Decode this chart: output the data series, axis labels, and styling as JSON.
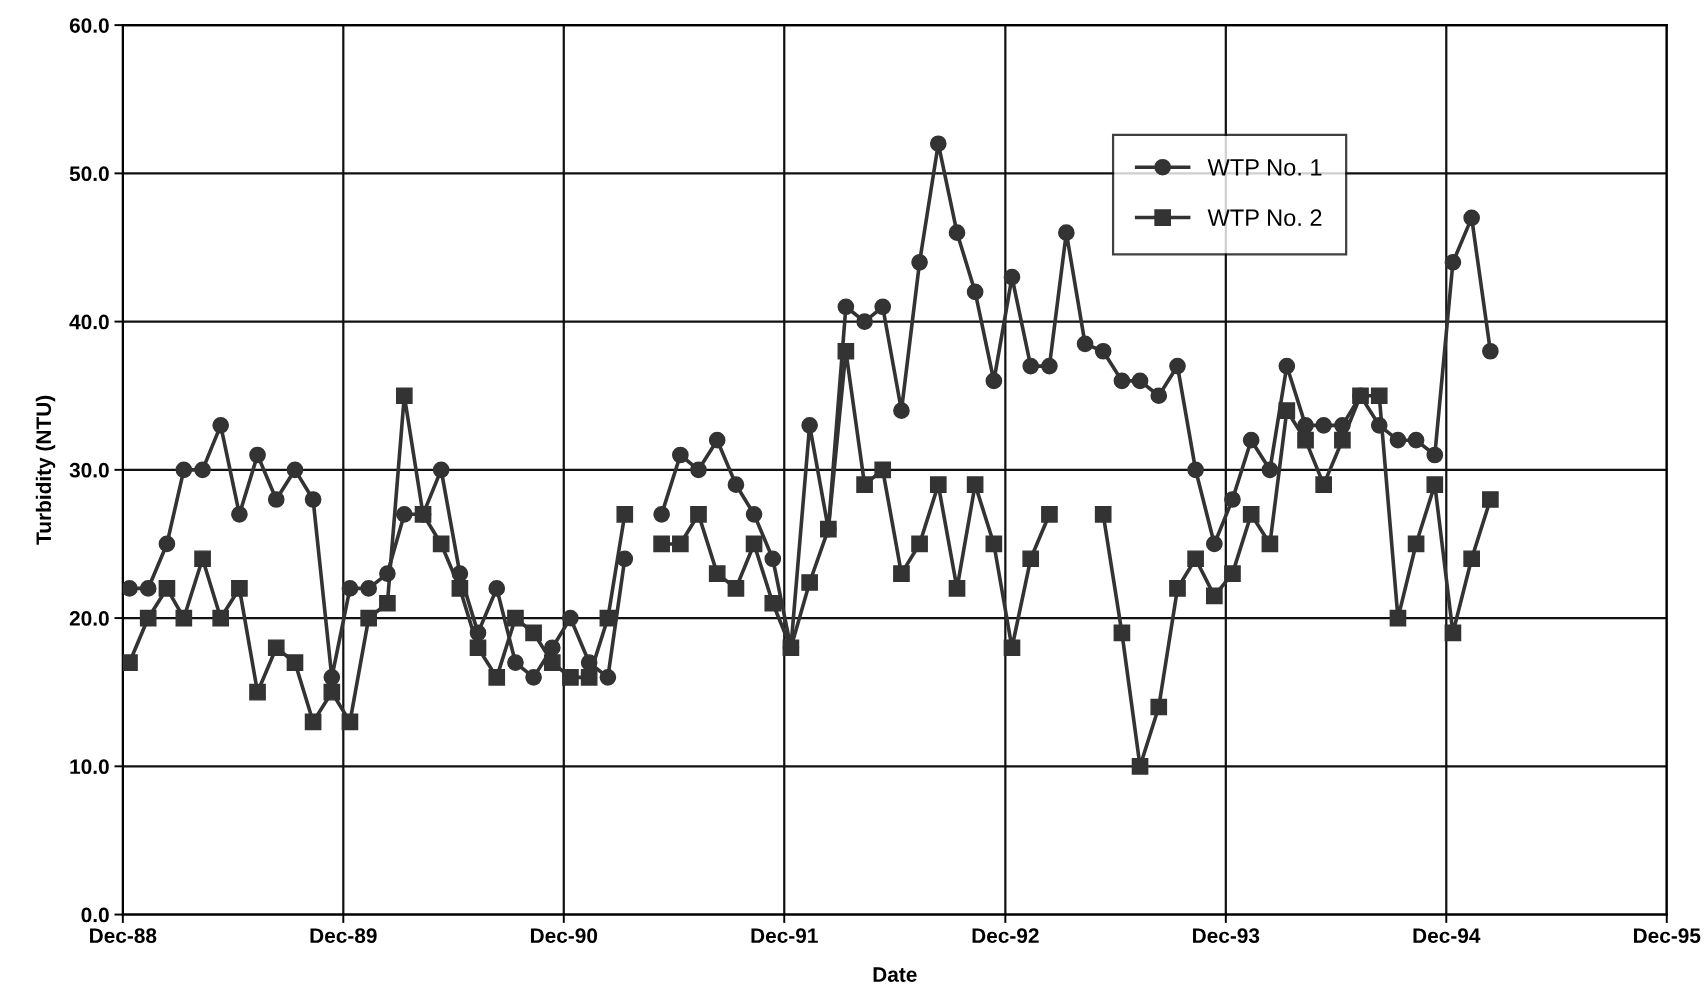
{
  "chart_data": {
    "type": "line",
    "xlabel": "Date",
    "ylabel": "Turbidity (NTU)",
    "x": [
      "1988-12-12",
      "1989-01-12",
      "1989-02-12",
      "1989-03-12",
      "1989-04-12",
      "1989-05-12",
      "1989-06-12",
      "1989-07-12",
      "1989-08-12",
      "1989-09-12",
      "1989-10-12",
      "1989-11-12",
      "1989-12-12",
      "1990-01-12",
      "1990-02-12",
      "1990-03-12",
      "1990-04-12",
      "1990-05-12",
      "1990-06-12",
      "1990-07-12",
      "1990-08-12",
      "1990-09-12",
      "1990-10-12",
      "1990-11-12",
      "1990-12-12",
      "1991-01-12",
      "1991-02-12",
      "1991-03-12",
      "1991-04-12",
      "1991-05-12",
      "1991-06-12",
      "1991-07-12",
      "1991-08-12",
      "1991-09-12",
      "1991-10-12",
      "1991-11-12",
      "1991-12-12",
      "1992-01-12",
      "1992-02-12",
      "1992-03-12",
      "1992-04-12",
      "1992-05-12",
      "1992-06-12",
      "1992-07-12",
      "1992-08-12",
      "1992-09-12",
      "1992-10-12",
      "1992-11-12",
      "1992-12-12",
      "1993-01-12",
      "1993-02-12",
      "1993-03-12",
      "1993-04-12",
      "1993-05-12",
      "1993-06-12",
      "1993-07-12",
      "1993-08-12",
      "1993-09-12",
      "1993-10-12",
      "1993-11-12",
      "1993-12-12",
      "1994-01-12",
      "1994-02-12",
      "1994-03-12",
      "1994-04-12",
      "1994-05-12",
      "1994-06-12",
      "1994-07-12",
      "1994-08-12",
      "1994-09-12",
      "1994-10-12",
      "1994-11-12",
      "1994-12-12",
      "1995-01-12",
      "1995-02-12"
    ],
    "series": [
      {
        "name": "WTP No. 1",
        "color": "#333333",
        "marker": "circle",
        "values": [
          22,
          22,
          25,
          30,
          30,
          33,
          27,
          31,
          28,
          30,
          28,
          16,
          22,
          22,
          23,
          27,
          27,
          30,
          23,
          19,
          22,
          17,
          16,
          18,
          20,
          17,
          16,
          24,
          null,
          27,
          31,
          30,
          32,
          29,
          27,
          24,
          18,
          33,
          26,
          41,
          40,
          41,
          34,
          44,
          52,
          46,
          42,
          36,
          43,
          37,
          37,
          46,
          38.5,
          38,
          36,
          36,
          35,
          37,
          30,
          25,
          28,
          32,
          30,
          37,
          33,
          33,
          33,
          35,
          33,
          32,
          32,
          31,
          44,
          47,
          38
        ]
      },
      {
        "name": "WTP No. 2",
        "color": "#333333",
        "marker": "square",
        "values": [
          17,
          20,
          22,
          20,
          24,
          20,
          22,
          15,
          18,
          17,
          13,
          15,
          13,
          20,
          21,
          35,
          27,
          25,
          22,
          18,
          16,
          20,
          19,
          17,
          16,
          16,
          20,
          27,
          null,
          25,
          25,
          27,
          23,
          22,
          25,
          21,
          18,
          22.4,
          26,
          38,
          29,
          30,
          23,
          25,
          29,
          22,
          29,
          25,
          18,
          24,
          27,
          null,
          null,
          27,
          19,
          10,
          14,
          22,
          24,
          21.5,
          23,
          27,
          25,
          34,
          32,
          29,
          32,
          35,
          35,
          20,
          25,
          29,
          19,
          24,
          28
        ]
      }
    ],
    "xlim": [
      "1988-12-01",
      "1995-12-01"
    ],
    "xticks": [
      {
        "value": "1988-12-01",
        "label": "Dec-88"
      },
      {
        "value": "1989-12-01",
        "label": "Dec-89"
      },
      {
        "value": "1990-12-01",
        "label": "Dec-90"
      },
      {
        "value": "1991-12-01",
        "label": "Dec-91"
      },
      {
        "value": "1992-12-01",
        "label": "Dec-92"
      },
      {
        "value": "1993-12-01",
        "label": "Dec-93"
      },
      {
        "value": "1994-12-01",
        "label": "Dec-94"
      },
      {
        "value": "1995-12-01",
        "label": "Dec-95"
      }
    ],
    "ylim": [
      0,
      60
    ],
    "yticks": [
      {
        "value": 0,
        "label": "0.0"
      },
      {
        "value": 10,
        "label": "10.0"
      },
      {
        "value": 20,
        "label": "20.0"
      },
      {
        "value": 30,
        "label": "30.0"
      },
      {
        "value": 40,
        "label": "40.0"
      },
      {
        "value": 50,
        "label": "50.0"
      },
      {
        "value": 60,
        "label": "60.0"
      }
    ],
    "grid": true,
    "legend": "top right",
    "line_style": "solid"
  }
}
